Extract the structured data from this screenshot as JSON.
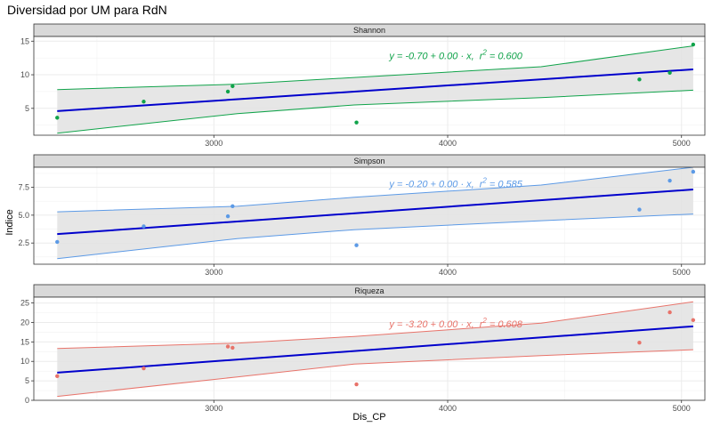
{
  "chart_data": {
    "type": "scatter",
    "title": "Diversidad por UM para RdN",
    "xlabel": "Dis_CP",
    "ylabel": "Indice",
    "xlim": [
      2230,
      5100
    ],
    "x_ticks": [
      3000,
      4000,
      5000
    ],
    "grid": true,
    "fit_line_color": "#0000cc",
    "ribbon_color": "#e3e3e3",
    "strip_fill": "#d9d9d9",
    "panels": [
      {
        "name": "Shannon",
        "color": "#10a34a",
        "ylim": [
          1.0,
          15.7
        ],
        "y_ticks": [
          5,
          10,
          15
        ],
        "y_tick_labels": [
          "5",
          "10",
          "15"
        ],
        "equation": {
          "lhs": "y = -0.70 + 0.00 · x,",
          "r2_prefix": "r",
          "r2_sup": "2",
          "r2_value": " = 0.600",
          "x": 3750,
          "y": 12.3
        },
        "points": {
          "x": [
            2330,
            2700,
            3060,
            3080,
            3610,
            4820,
            4950,
            5050
          ],
          "y": [
            3.6,
            6.0,
            7.5,
            8.3,
            2.9,
            9.3,
            10.3,
            14.5
          ]
        },
        "fit": {
          "x": [
            2330,
            5050
          ],
          "y": [
            4.6,
            10.8
          ]
        },
        "band_lower": {
          "x": [
            2330,
            3100,
            3600,
            4400,
            5050
          ],
          "y": [
            1.3,
            4.2,
            5.5,
            6.6,
            7.7
          ]
        },
        "band_upper": {
          "x": [
            2330,
            3100,
            3600,
            4400,
            5050
          ],
          "y": [
            7.8,
            8.6,
            9.6,
            11.2,
            14.3
          ]
        }
      },
      {
        "name": "Simpson",
        "color": "#5c9ae6",
        "ylim": [
          0.6,
          9.3
        ],
        "y_ticks": [
          2.5,
          5.0,
          7.5
        ],
        "y_tick_labels": [
          "2.5",
          "5.0",
          "7.5"
        ],
        "equation": {
          "lhs": "y = -0.20 + 0.00 · x,",
          "r2_prefix": "r",
          "r2_sup": "2",
          "r2_value": " = 0.585",
          "x": 3750,
          "y": 7.5
        },
        "points": {
          "x": [
            2330,
            2700,
            3060,
            3080,
            3610,
            4820,
            4950,
            5050
          ],
          "y": [
            2.6,
            4.0,
            4.9,
            5.8,
            2.3,
            5.5,
            8.1,
            8.9
          ]
        },
        "fit": {
          "x": [
            2330,
            5050
          ],
          "y": [
            3.3,
            7.3
          ]
        },
        "band_lower": {
          "x": [
            2330,
            3100,
            3600,
            4400,
            5050
          ],
          "y": [
            1.1,
            2.9,
            3.7,
            4.5,
            5.1
          ]
        },
        "band_upper": {
          "x": [
            2330,
            3100,
            3600,
            4400,
            5050
          ],
          "y": [
            5.3,
            5.8,
            6.6,
            7.7,
            9.3
          ]
        }
      },
      {
        "name": "Riqueza",
        "color": "#e8736a",
        "ylim": [
          0,
          26.5
        ],
        "y_ticks": [
          0,
          5,
          10,
          15,
          20,
          25
        ],
        "y_tick_labels": [
          "0",
          "5",
          "10",
          "15",
          "20",
          "25"
        ],
        "equation": {
          "lhs": "y = -3.20 + 0.00 · x,",
          "r2_prefix": "r",
          "r2_sup": "2",
          "r2_value": " = 0.608",
          "x": 3750,
          "y": 18.7
        },
        "points": {
          "x": [
            2330,
            2700,
            3060,
            3080,
            3610,
            4820,
            4950,
            5050
          ],
          "y": [
            6.2,
            8.2,
            13.8,
            13.5,
            4.1,
            14.8,
            22.6,
            20.6
          ]
        },
        "fit": {
          "x": [
            2330,
            5050
          ],
          "y": [
            7.1,
            19.0
          ]
        },
        "band_lower": {
          "x": [
            2330,
            3100,
            3600,
            4400,
            5050
          ],
          "y": [
            1.0,
            6.0,
            9.3,
            11.5,
            13.0
          ]
        },
        "band_upper": {
          "x": [
            2330,
            3100,
            3600,
            4400,
            5050
          ],
          "y": [
            13.3,
            14.7,
            16.4,
            19.8,
            25.3
          ]
        }
      }
    ]
  }
}
